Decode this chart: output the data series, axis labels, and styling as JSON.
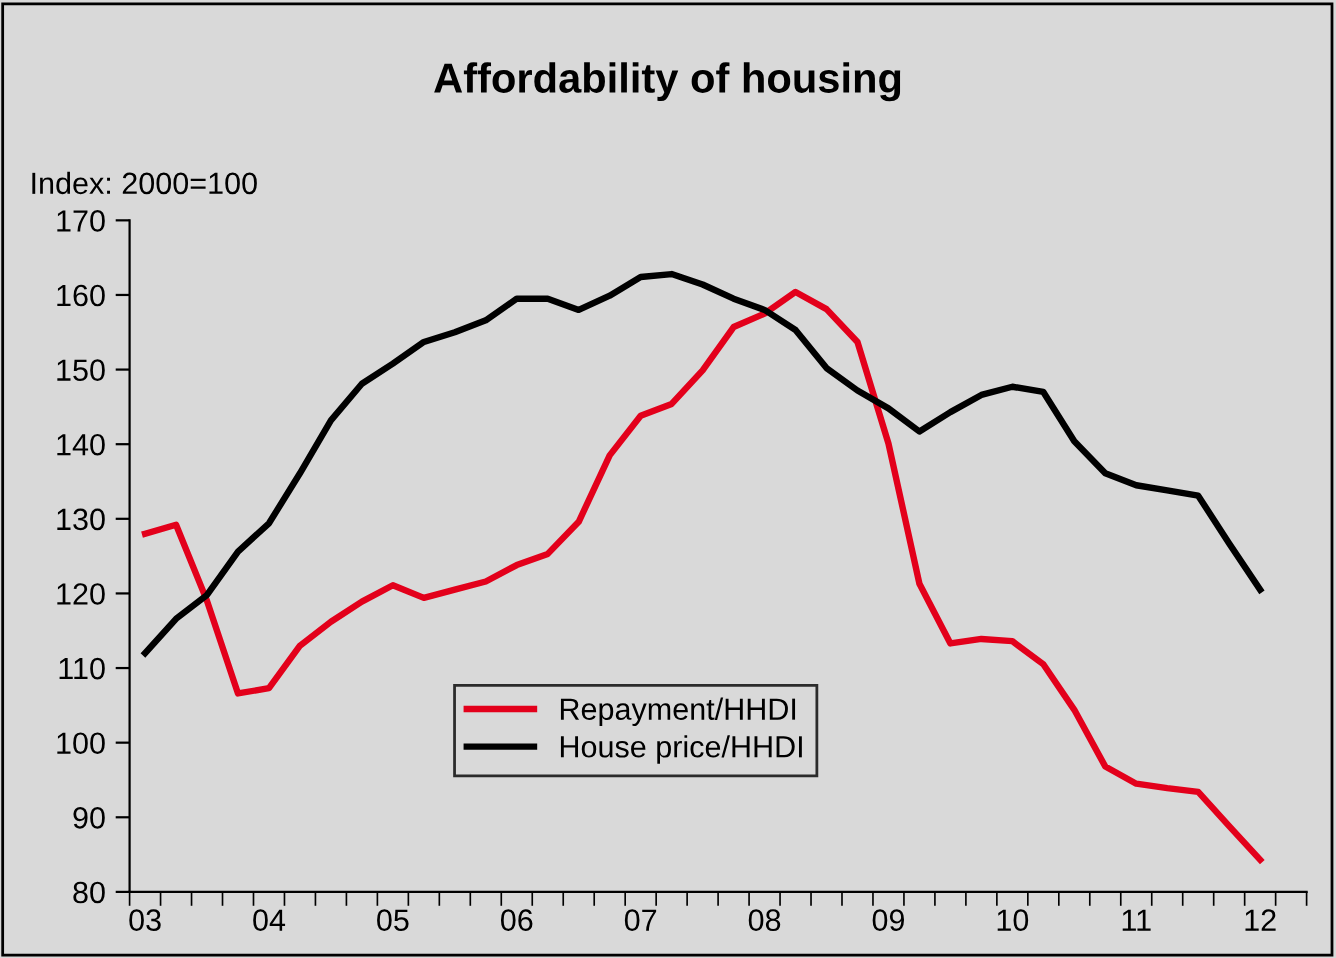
{
  "chart_data": {
    "type": "line",
    "title": "Affordability of housing",
    "ylabel": "Index: 2000=100",
    "categories": [
      "03",
      null,
      null,
      null,
      "04",
      null,
      null,
      null,
      "05",
      null,
      null,
      null,
      "06",
      null,
      null,
      null,
      "07",
      null,
      null,
      null,
      "08",
      null,
      null,
      null,
      "09",
      null,
      null,
      null,
      "10",
      null,
      null,
      null,
      "11",
      null,
      null,
      null,
      "12",
      null
    ],
    "series": [
      {
        "name": "Repayment/HHDI",
        "color": "#e3001b",
        "values": [
          128.0,
          129.2,
          119.0,
          106.6,
          107.3,
          113.0,
          116.2,
          118.9,
          121.1,
          119.4,
          120.5,
          121.6,
          123.8,
          125.3,
          129.6,
          138.5,
          143.8,
          145.4,
          149.9,
          155.7,
          157.5,
          160.4,
          158.1,
          153.7,
          140.1,
          121.3,
          113.3,
          113.9,
          113.6,
          110.5,
          104.4,
          96.8,
          94.5,
          93.9,
          93.4,
          88.8,
          84.3,
          null
        ]
      },
      {
        "name": "House price/HHDI",
        "color": "#000000",
        "values": [
          112.0,
          116.6,
          119.8,
          125.6,
          129.4,
          136.1,
          143.2,
          148.1,
          150.8,
          153.7,
          155.0,
          156.6,
          159.5,
          159.5,
          158.0,
          159.9,
          162.4,
          162.8,
          161.4,
          159.5,
          158.0,
          155.3,
          150.2,
          147.2,
          144.8,
          141.7,
          144.3,
          146.6,
          147.7,
          147.0,
          140.4,
          136.1,
          134.5,
          133.8,
          133.1,
          126.7,
          120.5,
          null
        ]
      }
    ],
    "ylim": [
      80,
      170
    ],
    "yticks": [
      80,
      90,
      100,
      110,
      120,
      130,
      140,
      150,
      160,
      170
    ],
    "legend": "bottom",
    "grid": false,
    "marker": "none",
    "line_style": "solid"
  }
}
